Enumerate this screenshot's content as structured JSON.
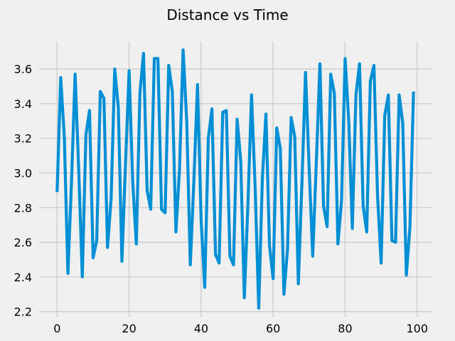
{
  "chart_data": {
    "type": "line",
    "title": "Distance vs Time",
    "xlabel": "",
    "ylabel": "",
    "xlim": [
      -5,
      104
    ],
    "ylim": [
      2.17,
      3.76
    ],
    "xticks": [
      0,
      20,
      40,
      60,
      80,
      100
    ],
    "yticks": [
      2.2,
      2.4,
      2.6,
      2.8,
      3.0,
      3.2,
      3.4,
      3.6
    ],
    "xtick_labels": [
      "0",
      "20",
      "40",
      "60",
      "80",
      "100"
    ],
    "ytick_labels": [
      "2.2",
      "2.4",
      "2.6",
      "2.8",
      "3.0",
      "3.2",
      "3.4",
      "3.6"
    ],
    "grid": true,
    "series": [
      {
        "color": "#008fd5",
        "x": [
          0,
          1,
          2,
          3,
          4,
          5,
          6,
          7,
          8,
          9,
          10,
          11,
          12,
          13,
          14,
          15,
          16,
          17,
          18,
          19,
          20,
          21,
          22,
          23,
          24,
          25,
          26,
          27,
          28,
          29,
          30,
          31,
          32,
          33,
          34,
          35,
          36,
          37,
          38,
          39,
          40,
          41,
          42,
          43,
          44,
          45,
          46,
          47,
          48,
          49,
          50,
          51,
          52,
          53,
          54,
          55,
          56,
          57,
          58,
          59,
          60,
          61,
          62,
          63,
          64,
          65,
          66,
          67,
          68,
          69,
          70,
          71,
          72,
          73,
          74,
          75,
          76,
          77,
          78,
          79,
          80,
          81,
          82,
          83,
          84,
          85,
          86,
          87,
          88,
          89,
          90,
          91,
          92,
          93,
          94,
          95,
          96,
          97,
          98,
          99
        ],
        "values": [
          2.89,
          3.55,
          3.21,
          2.42,
          2.95,
          3.57,
          3.02,
          2.4,
          3.22,
          3.36,
          2.51,
          2.61,
          3.47,
          3.43,
          2.57,
          2.85,
          3.6,
          3.38,
          2.49,
          3.05,
          3.59,
          2.95,
          2.59,
          3.46,
          3.69,
          2.9,
          2.79,
          3.66,
          3.66,
          2.79,
          2.77,
          3.62,
          3.47,
          2.66,
          3.02,
          3.71,
          3.3,
          2.47,
          2.96,
          3.51,
          2.73,
          2.34,
          3.2,
          3.37,
          2.53,
          2.48,
          3.35,
          3.36,
          2.52,
          2.47,
          3.31,
          3.07,
          2.28,
          2.82,
          3.45,
          2.92,
          2.22,
          2.96,
          3.34,
          2.58,
          2.39,
          3.26,
          3.14,
          2.3,
          2.56,
          3.32,
          3.21,
          2.36,
          2.94,
          3.58,
          3.03,
          2.52,
          3.06,
          3.63,
          2.81,
          2.69,
          3.57,
          3.46,
          2.59,
          2.84,
          3.66,
          3.3,
          2.68,
          3.45,
          3.63,
          2.81,
          2.66,
          3.53,
          3.62,
          2.87,
          2.48,
          3.33,
          3.45,
          2.61,
          2.6,
          3.45,
          3.29,
          2.41,
          2.69,
          3.47
        ]
      }
    ]
  }
}
